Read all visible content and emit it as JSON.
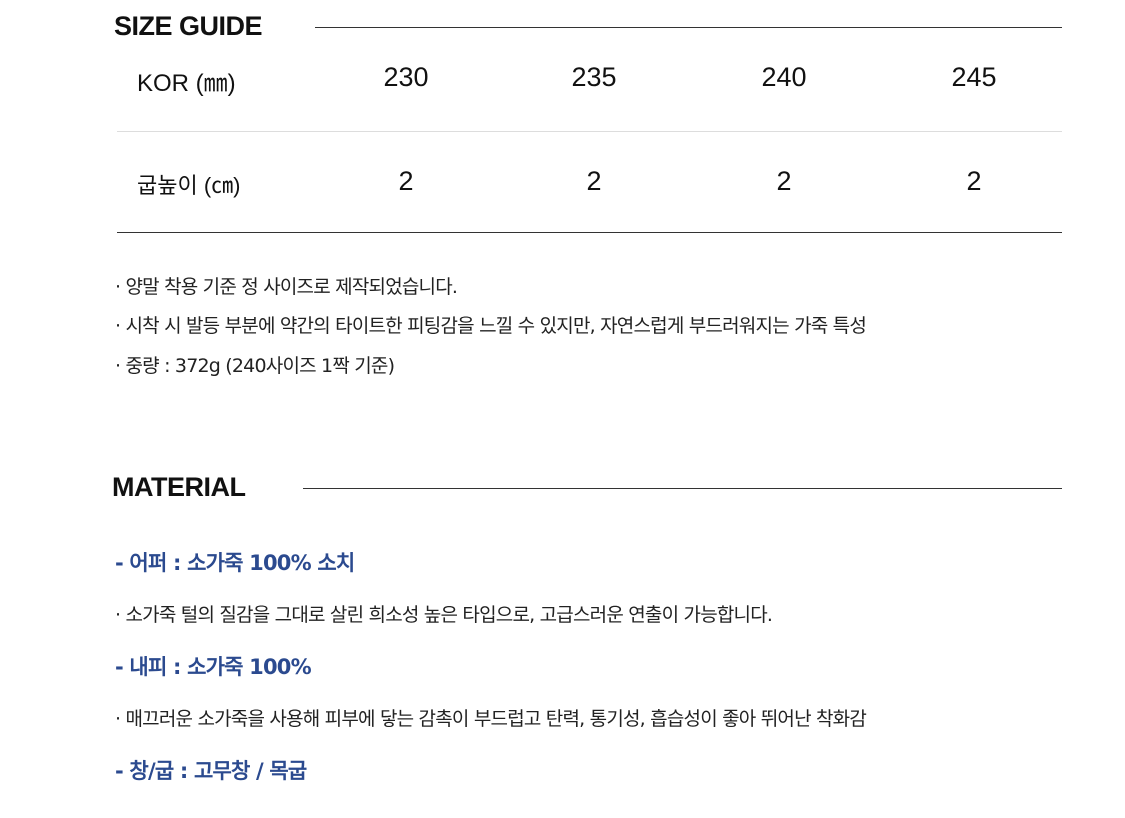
{
  "size_guide": {
    "title": "SIZE GUIDE",
    "rows": [
      {
        "label": "KOR (㎜)",
        "values": [
          "230",
          "235",
          "240",
          "245"
        ]
      },
      {
        "label": "굽높이 (㎝)",
        "values": [
          "2",
          "2",
          "2",
          "2"
        ]
      }
    ],
    "notes": [
      "· 양말 착용 기준 정 사이즈로 제작되었습니다.",
      "· 시착 시 발등 부분에 약간의 타이트한 피팅감을 느낄 수 있지만, 자연스럽게 부드러워지는 가죽 특성",
      "· 중량 : 372g (240사이즈 1짝 기준)"
    ]
  },
  "material": {
    "title": "MATERIAL",
    "accent_color": "#2b4a8f",
    "items": [
      {
        "heading": "- 어퍼 : 소가죽 100% 소치",
        "desc": "· 소가죽 털의 질감을 그대로 살린 희소성 높은 타입으로, 고급스러운 연출이 가능합니다."
      },
      {
        "heading": "- 내피 : 소가죽 100%",
        "desc": "· 매끄러운 소가죽을 사용해 피부에 닿는 감촉이 부드럽고 탄력, 통기성, 흡습성이 좋아 뛰어난 착화감"
      },
      {
        "heading": "- 창/굽 : 고무창 / 목굽"
      }
    ]
  }
}
